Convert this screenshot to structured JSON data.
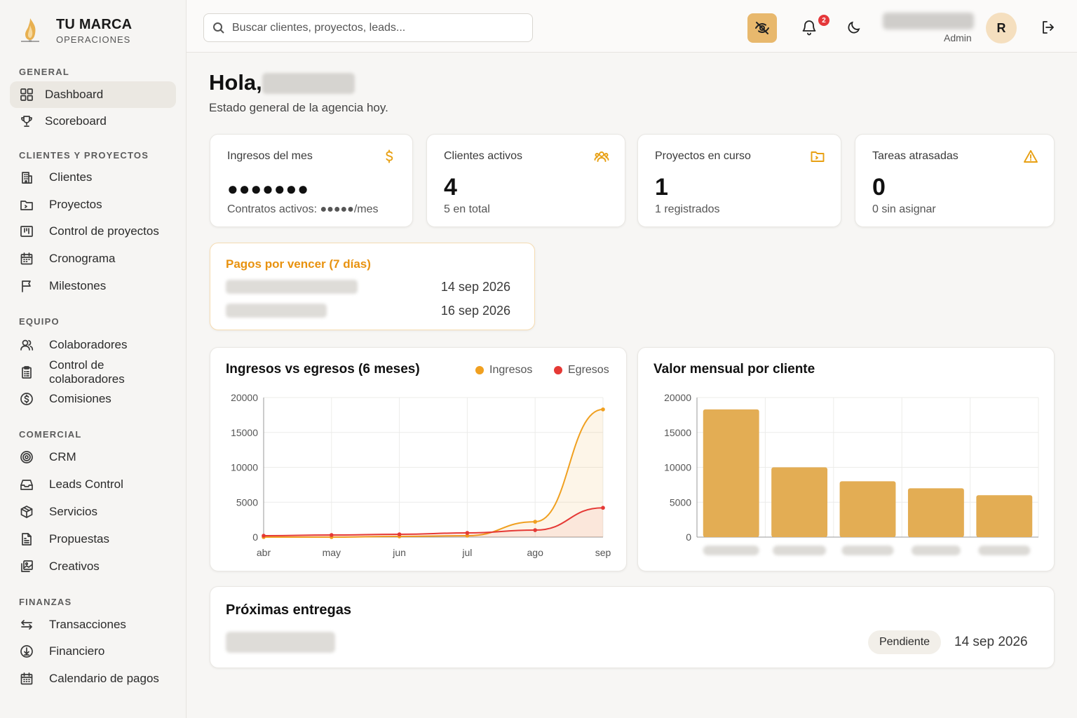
{
  "brand": {
    "name": "TU MARCA",
    "sub": "OPERACIONES"
  },
  "sidebar": {
    "sections": [
      {
        "title": "GENERAL",
        "items": [
          {
            "label": "Dashboard",
            "icon": "grid-icon",
            "active": true
          },
          {
            "label": "Scoreboard",
            "icon": "trophy-icon"
          }
        ]
      },
      {
        "title": "CLIENTES Y PROYECTOS",
        "items": [
          {
            "label": "Clientes",
            "icon": "building-icon"
          },
          {
            "label": "Proyectos",
            "icon": "folder-icon"
          },
          {
            "label": "Control de proyectos",
            "icon": "kanban-icon"
          },
          {
            "label": "Cronograma",
            "icon": "calendar-icon"
          },
          {
            "label": "Milestones",
            "icon": "flag-icon"
          }
        ]
      },
      {
        "title": "EQUIPO",
        "items": [
          {
            "label": "Colaboradores",
            "icon": "users-icon"
          },
          {
            "label": "Control de colaboradores",
            "icon": "clipboard-icon"
          },
          {
            "label": "Comisiones",
            "icon": "dollar-circle-icon"
          }
        ]
      },
      {
        "title": "COMERCIAL",
        "items": [
          {
            "label": "CRM",
            "icon": "target-icon"
          },
          {
            "label": "Leads Control",
            "icon": "inbox-icon"
          },
          {
            "label": "Servicios",
            "icon": "box-icon"
          },
          {
            "label": "Propuestas",
            "icon": "document-icon"
          },
          {
            "label": "Creativos",
            "icon": "images-icon"
          }
        ]
      },
      {
        "title": "FINANZAS",
        "items": [
          {
            "label": "Transacciones",
            "icon": "arrows-icon"
          },
          {
            "label": "Financiero",
            "icon": "download-circle-icon"
          },
          {
            "label": "Calendario de pagos",
            "icon": "calendar-grid-icon"
          }
        ]
      }
    ]
  },
  "topbar": {
    "search_placeholder": "Buscar clientes, proyectos, leads...",
    "notifications_count": "2",
    "user_role": "Admin",
    "avatar_initial": "R"
  },
  "main": {
    "greeting": "Hola,",
    "subtitle": "Estado general de la agencia hoy."
  },
  "stats": [
    {
      "label": "Ingresos del mes",
      "value": "●●●●●●●",
      "sub": "Contratos activos: ●●●●●/mes",
      "icon": "dollar-icon"
    },
    {
      "label": "Clientes activos",
      "value": "4",
      "sub": "5 en total",
      "icon": "users-icon"
    },
    {
      "label": "Proyectos en curso",
      "value": "1",
      "sub": "1 registrados",
      "icon": "folder-icon"
    },
    {
      "label": "Tareas atrasadas",
      "value": "0",
      "sub": "0 sin asignar",
      "icon": "warning-icon"
    }
  ],
  "due_payments": {
    "title": "Pagos por vencer (7 días)",
    "rows": [
      {
        "date": "14 sep 2026"
      },
      {
        "date": "16 sep 2026"
      }
    ]
  },
  "colors": {
    "accent": "#e8a013",
    "ingresos": "#f0a020",
    "egresos": "#e53935",
    "bar": "#e3ad54"
  },
  "charts": {
    "income_title": "Ingresos vs egresos (6 meses)",
    "value_title": "Valor mensual por cliente"
  },
  "chart_data": [
    {
      "type": "line",
      "title": "Ingresos vs egresos (6 meses)",
      "x": [
        "abr",
        "may",
        "jun",
        "jul",
        "ago",
        "sep"
      ],
      "series": [
        {
          "name": "Ingresos",
          "values": [
            0,
            0,
            100,
            200,
            2200,
            18300
          ]
        },
        {
          "name": "Egresos",
          "values": [
            200,
            300,
            400,
            600,
            1000,
            4200
          ]
        }
      ],
      "y_ticks": [
        0,
        5000,
        10000,
        15000,
        20000
      ],
      "ylim": [
        0,
        20000
      ],
      "legend": "top-right",
      "grid": true
    },
    {
      "type": "bar",
      "title": "Valor mensual por cliente",
      "categories": [
        "",
        "",
        "",
        "",
        ""
      ],
      "values": [
        18300,
        10000,
        8000,
        7000,
        6000
      ],
      "y_ticks": [
        0,
        5000,
        10000,
        15000,
        20000
      ],
      "ylim": [
        0,
        20000
      ],
      "grid": true
    }
  ],
  "deliveries": {
    "title": "Próximas entregas",
    "status": "Pendiente",
    "date": "14 sep 2026"
  }
}
